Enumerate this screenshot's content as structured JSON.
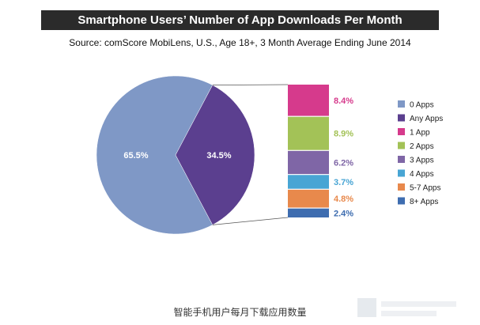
{
  "title": "Smartphone Users’ Number of App Downloads Per Month",
  "subtitle": "Source: comScore MobiLens, U.S., Age 18+, 3 Month Average Ending June 2014",
  "caption": "智能手机用户每月下载应用数量",
  "chart_data": {
    "type": "pie",
    "pie": {
      "slices": [
        {
          "name": "0 Apps",
          "value": 65.5,
          "label": "65.5%",
          "color": "#7f98c6"
        },
        {
          "name": "Any Apps",
          "value": 34.5,
          "label": "34.5%",
          "color": "#5b3f8f"
        }
      ]
    },
    "breakdown": {
      "type": "stacked-bar",
      "of": "Any Apps",
      "segments": [
        {
          "name": "1 App",
          "value": 8.4,
          "label": "8.4%",
          "color": "#d63a8c"
        },
        {
          "name": "2 Apps",
          "value": 8.9,
          "label": "8.9%",
          "color": "#a3c257"
        },
        {
          "name": "3 Apps",
          "value": 6.2,
          "label": "6.2%",
          "color": "#7f66a6"
        },
        {
          "name": "4 Apps",
          "value": 3.7,
          "label": "3.7%",
          "color": "#48a5d4"
        },
        {
          "name": "5-7 Apps",
          "value": 4.8,
          "label": "4.8%",
          "color": "#e8894c"
        },
        {
          "name": "8+ Apps",
          "value": 2.4,
          "label": "2.4%",
          "color": "#3e6db0"
        }
      ]
    },
    "legend": {
      "placement": "right",
      "entries": [
        {
          "label": "0 Apps",
          "color": "#7f98c6"
        },
        {
          "label": "Any Apps",
          "color": "#5b3f8f"
        },
        {
          "label": "1 App",
          "color": "#d63a8c"
        },
        {
          "label": "2 Apps",
          "color": "#a3c257"
        },
        {
          "label": "3 Apps",
          "color": "#7f66a6"
        },
        {
          "label": "4 Apps",
          "color": "#48a5d4"
        },
        {
          "label": "5-7 Apps",
          "color": "#e8894c"
        },
        {
          "label": "8+ Apps",
          "color": "#3e6db0"
        }
      ]
    }
  }
}
